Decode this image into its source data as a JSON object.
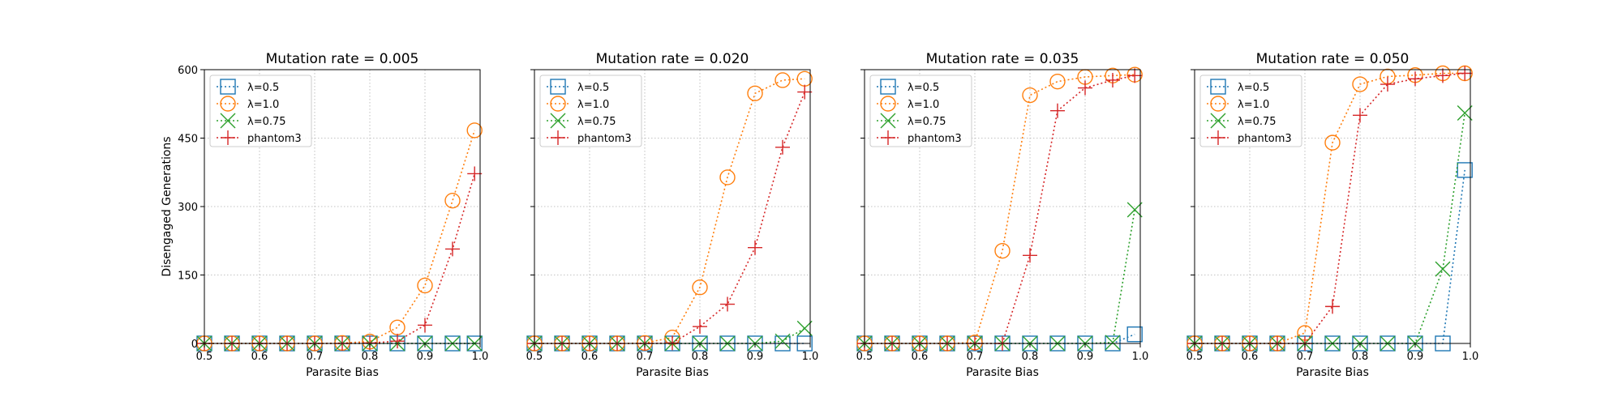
{
  "figure": {
    "ylabel": "Disengaged Generations",
    "xlabel": "Parasite Bias"
  },
  "series_styles": [
    {
      "name": "λ=0.5",
      "color": "#1f77b4",
      "marker": "square"
    },
    {
      "name": "λ=1.0",
      "color": "#ff7f0e",
      "marker": "circle"
    },
    {
      "name": "λ=0.75",
      "color": "#2ca02c",
      "marker": "x"
    },
    {
      "name": "phantom3",
      "color": "#d62728",
      "marker": "plus"
    }
  ],
  "chart_data": [
    {
      "type": "line",
      "title": "Mutation rate = 0.005",
      "xlabel": "Parasite Bias",
      "ylabel": "Disengaged Generations",
      "xlim": [
        0.5,
        1.0
      ],
      "ylim": [
        0,
        600
      ],
      "xticks": [
        "0.5",
        "0.6",
        "0.7",
        "0.8",
        "0.9",
        "1.0"
      ],
      "yticks": [
        "0",
        "150",
        "300",
        "450",
        "600"
      ],
      "grid": true,
      "legend": "top-left",
      "x": [
        0.5,
        0.55,
        0.6,
        0.65,
        0.7,
        0.75,
        0.8,
        0.85,
        0.9,
        0.95,
        0.99
      ],
      "series": [
        {
          "name": "λ=0.5",
          "values": [
            0,
            0,
            0,
            0,
            0,
            0,
            0,
            0,
            0,
            0,
            0
          ]
        },
        {
          "name": "λ=1.0",
          "values": [
            0,
            0,
            0,
            0,
            0,
            1,
            4,
            35,
            127,
            313,
            467
          ]
        },
        {
          "name": "λ=0.75",
          "values": [
            0,
            0,
            0,
            0,
            0,
            0,
            0,
            0,
            0,
            0,
            0
          ]
        },
        {
          "name": "phantom3",
          "values": [
            0,
            0,
            0,
            0,
            0,
            0,
            1,
            5,
            40,
            207,
            372
          ]
        }
      ]
    },
    {
      "type": "line",
      "title": "Mutation rate = 0.020",
      "xlabel": "Parasite Bias",
      "ylabel": "",
      "xlim": [
        0.5,
        1.0
      ],
      "ylim": [
        0,
        600
      ],
      "xticks": [
        "0.5",
        "0.6",
        "0.7",
        "0.8",
        "0.9",
        "1.0"
      ],
      "yticks": [
        "0",
        "150",
        "300",
        "450",
        "600"
      ],
      "grid": true,
      "legend": "top-left",
      "x": [
        0.5,
        0.55,
        0.6,
        0.65,
        0.7,
        0.75,
        0.8,
        0.85,
        0.9,
        0.95,
        0.99
      ],
      "series": [
        {
          "name": "λ=0.5",
          "values": [
            0,
            0,
            0,
            0,
            0,
            0,
            0,
            0,
            0,
            0,
            0
          ]
        },
        {
          "name": "λ=1.0",
          "values": [
            0,
            0,
            0,
            0,
            1,
            13,
            123,
            364,
            548,
            577,
            580
          ]
        },
        {
          "name": "λ=0.75",
          "values": [
            0,
            0,
            0,
            0,
            0,
            0,
            0,
            0,
            0,
            5,
            33
          ]
        },
        {
          "name": "phantom3",
          "values": [
            0,
            0,
            0,
            0,
            0,
            1,
            37,
            86,
            210,
            430,
            551
          ]
        }
      ]
    },
    {
      "type": "line",
      "title": "Mutation rate = 0.035",
      "xlabel": "Parasite Bias",
      "ylabel": "",
      "xlim": [
        0.5,
        1.0
      ],
      "ylim": [
        0,
        600
      ],
      "xticks": [
        "0.5",
        "0.6",
        "0.7",
        "0.8",
        "0.9",
        "1.0"
      ],
      "yticks": [
        "0",
        "150",
        "300",
        "450",
        "600"
      ],
      "grid": true,
      "legend": "top-left",
      "x": [
        0.5,
        0.55,
        0.6,
        0.65,
        0.7,
        0.75,
        0.8,
        0.85,
        0.9,
        0.95,
        0.99
      ],
      "series": [
        {
          "name": "λ=0.5",
          "values": [
            0,
            0,
            0,
            0,
            0,
            0,
            0,
            0,
            0,
            0,
            20
          ]
        },
        {
          "name": "λ=1.0",
          "values": [
            0,
            0,
            0,
            0,
            2,
            203,
            544,
            574,
            584,
            587,
            589
          ]
        },
        {
          "name": "λ=0.75",
          "values": [
            0,
            0,
            0,
            0,
            0,
            0,
            0,
            0,
            0,
            2,
            293
          ]
        },
        {
          "name": "phantom3",
          "values": [
            0,
            0,
            0,
            0,
            0,
            0,
            193,
            510,
            560,
            577,
            587
          ]
        }
      ]
    },
    {
      "type": "line",
      "title": "Mutation rate = 0.050",
      "xlabel": "Parasite Bias",
      "ylabel": "",
      "xlim": [
        0.5,
        1.0
      ],
      "ylim": [
        0,
        600
      ],
      "xticks": [
        "0.5",
        "0.6",
        "0.7",
        "0.8",
        "0.9",
        "1.0"
      ],
      "yticks": [
        "0",
        "150",
        "300",
        "450",
        "600"
      ],
      "grid": true,
      "legend": "top-left",
      "x": [
        0.5,
        0.55,
        0.6,
        0.65,
        0.7,
        0.75,
        0.8,
        0.85,
        0.9,
        0.95,
        0.99
      ],
      "series": [
        {
          "name": "λ=0.5",
          "values": [
            0,
            0,
            0,
            0,
            0,
            0,
            0,
            0,
            0,
            0,
            380
          ]
        },
        {
          "name": "λ=1.0",
          "values": [
            0,
            0,
            0,
            0,
            23,
            440,
            568,
            585,
            588,
            592,
            592
          ]
        },
        {
          "name": "λ=0.75",
          "values": [
            0,
            0,
            0,
            0,
            0,
            0,
            0,
            0,
            0,
            163,
            505
          ]
        },
        {
          "name": "phantom3",
          "values": [
            0,
            0,
            0,
            0,
            0,
            81,
            500,
            568,
            580,
            587,
            592
          ]
        }
      ]
    }
  ]
}
